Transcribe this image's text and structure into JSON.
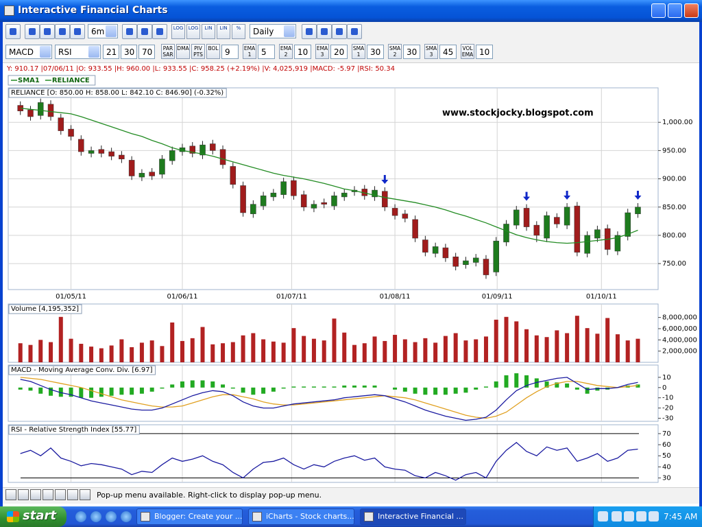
{
  "window": {
    "title": "Interactive Financial Charts"
  },
  "toolbar": {
    "period": "6m",
    "interval": "Daily",
    "scale_buttons": [
      "LOG",
      "LOG",
      "LIN",
      "LIN",
      "%"
    ],
    "indicators": [
      "MACD",
      "RSI"
    ],
    "indicator_params": [
      "21",
      "30",
      "70"
    ],
    "overlays": [
      {
        "label": [
          "PAR",
          "SAR"
        ]
      },
      {
        "label": [
          "DMA"
        ]
      },
      {
        "label": [
          "PIV",
          "PTS"
        ]
      },
      {
        "label": [
          "BOL"
        ],
        "period": "9"
      },
      {
        "label": [
          "EMA",
          "1"
        ],
        "period": "5"
      },
      {
        "label": [
          "EMA",
          "2"
        ],
        "period": "10"
      },
      {
        "label": [
          "EMA",
          "3"
        ],
        "period": "20"
      },
      {
        "label": [
          "SMA",
          "1"
        ],
        "period": "30"
      },
      {
        "label": [
          "SMA",
          "2"
        ],
        "period": "30"
      },
      {
        "label": [
          "SMA",
          "3"
        ],
        "period": "45"
      },
      {
        "label": [
          "VOL",
          "EMA"
        ],
        "period": "10"
      }
    ]
  },
  "info_line": "Y: 910.17 |07/06/11 |O: 933.55 |H: 960.00 |L: 933.55 |C: 958.25 (+2.19%) |V: 4,025,919 |MACD: -5.97 |RSI: 50.34",
  "watermark": "www.stockjocky.blogspot.com",
  "chart_data": [
    {
      "type": "candlestick",
      "title": "RELIANCE [O: 850.00 H: 858.00 L: 842.10 C: 846.90] (-0.32%)",
      "xlim": [
        -1.2,
        63
      ],
      "ylim": [
        704,
        1061
      ],
      "grid": true,
      "xticks": [
        {
          "value": 5,
          "label": "01/05/11"
        },
        {
          "value": 16,
          "label": "01/06/11"
        },
        {
          "value": 26.8,
          "label": "01/07/11"
        },
        {
          "value": 37,
          "label": "01/08/11"
        },
        {
          "value": 47.1,
          "label": "01/09/11"
        },
        {
          "value": 57.4,
          "label": "01/10/11"
        }
      ],
      "yticks": [
        {
          "value": 750,
          "label": "750.00"
        },
        {
          "value": 800,
          "label": "800.00"
        },
        {
          "value": 850,
          "label": "850.00"
        },
        {
          "value": 900,
          "label": "900.00"
        },
        {
          "value": 950,
          "label": "950.00"
        },
        {
          "value": 1000,
          "label": "1,000.00"
        }
      ],
      "signals": [
        36,
        50,
        54,
        61
      ],
      "series": [
        {
          "name": "RELIANCE",
          "style": "candlestick",
          "color": "#1e7b1e",
          "down_color": "#a01c1c",
          "open": [
            1030,
            1022,
            1012,
            1032,
            1008,
            988,
            970,
            945,
            952,
            948,
            942,
            933,
            903,
            912,
            908,
            932,
            948,
            958,
            942,
            962,
            952,
            922,
            888,
            838,
            852,
            868,
            872,
            897,
            872,
            848,
            858,
            852,
            868,
            877,
            882,
            868,
            878,
            848,
            838,
            828,
            792,
            768,
            778,
            762,
            748,
            752,
            758,
            735,
            788,
            818,
            848,
            818,
            795,
            832,
            818,
            852,
            768,
            795,
            812,
            772,
            798,
            838
          ],
          "high": [
            1037,
            1029,
            1042,
            1039,
            1015,
            995,
            977,
            957,
            959,
            955,
            949,
            940,
            917,
            919,
            942,
            957,
            962,
            965,
            967,
            969,
            959,
            929,
            895,
            862,
            877,
            882,
            902,
            904,
            879,
            862,
            865,
            877,
            882,
            887,
            889,
            887,
            885,
            855,
            845,
            835,
            799,
            787,
            785,
            769,
            762,
            767,
            765,
            797,
            827,
            852,
            855,
            825,
            842,
            839,
            857,
            859,
            807,
            817,
            819,
            807,
            847,
            857
          ],
          "low": [
            1013,
            1003,
            1005,
            1003,
            978,
            968,
            941,
            938,
            938,
            933,
            928,
            898,
            896,
            898,
            901,
            925,
            941,
            938,
            935,
            943,
            918,
            883,
            833,
            831,
            845,
            861,
            865,
            863,
            843,
            841,
            848,
            845,
            861,
            870,
            863,
            861,
            843,
            828,
            823,
            788,
            763,
            761,
            753,
            738,
            741,
            745,
            723,
            728,
            781,
            811,
            808,
            788,
            788,
            813,
            811,
            763,
            761,
            788,
            765,
            765,
            791,
            831
          ],
          "close": [
            1020,
            1010,
            1035,
            1010,
            985,
            975,
            948,
            950,
            945,
            940,
            935,
            905,
            910,
            905,
            935,
            950,
            955,
            945,
            960,
            950,
            925,
            890,
            840,
            855,
            870,
            875,
            895,
            870,
            850,
            855,
            855,
            870,
            875,
            880,
            870,
            880,
            850,
            835,
            830,
            795,
            770,
            780,
            760,
            745,
            755,
            760,
            730,
            790,
            820,
            845,
            815,
            800,
            835,
            820,
            850,
            770,
            800,
            810,
            775,
            800,
            840,
            850
          ]
        },
        {
          "name": "SMA1",
          "style": "line",
          "color": "#228b22",
          "values": [
            1025,
            1023,
            1021,
            1019,
            1017,
            1015,
            1010,
            1004,
            998,
            992,
            986,
            980,
            975,
            968,
            962,
            955,
            950,
            947,
            944,
            940,
            935,
            930,
            925,
            920,
            915,
            910,
            906,
            903,
            900,
            896,
            892,
            887,
            882,
            879,
            875,
            871,
            867,
            864,
            861,
            858,
            854,
            850,
            845,
            839,
            834,
            828,
            822,
            815,
            808,
            801,
            796,
            792,
            789,
            787,
            786,
            787,
            789,
            791,
            793,
            796,
            802,
            809
          ]
        }
      ]
    },
    {
      "type": "bar",
      "title": "Volume [4,195,352]",
      "xlim": [
        -1.2,
        63
      ],
      "ylim": [
        0,
        10400000
      ],
      "yticks": [
        {
          "value": 2000000,
          "label": "2,000,000"
        },
        {
          "value": 4000000,
          "label": "4,000,000"
        },
        {
          "value": 6000000,
          "label": "6,000,000"
        },
        {
          "value": 8000000,
          "label": "8,000,000"
        }
      ],
      "series": [
        {
          "style": "bar",
          "color": "#b22222",
          "values": [
            3400000,
            3100000,
            4000000,
            3600000,
            8100000,
            4200000,
            3300000,
            2800000,
            2500000,
            3000000,
            4100000,
            2700000,
            3500000,
            3900000,
            2900000,
            7100000,
            3800000,
            4300000,
            6300000,
            3200000,
            3400000,
            3600000,
            4800000,
            5200000,
            4100000,
            3700000,
            3500000,
            6100000,
            4700000,
            4200000,
            3900000,
            7800000,
            5300000,
            3100000,
            3400000,
            4600000,
            3800000,
            4900000,
            4100000,
            3600000,
            4300000,
            3500000,
            4700000,
            5200000,
            3900000,
            4100000,
            4600000,
            7600000,
            8100000,
            7300000,
            5900000,
            4800000,
            4500000,
            5700000,
            5200000,
            8300000,
            6100000,
            5100000,
            7900000,
            5000000,
            3900000,
            4200000
          ]
        }
      ]
    },
    {
      "type": "line",
      "title": "MACD - Moving Average Conv. Div. [6.97]",
      "xlim": [
        -1.2,
        63
      ],
      "ylim": [
        -33,
        22
      ],
      "yticks": [
        -30,
        -20,
        -10,
        0,
        10
      ],
      "series": [
        {
          "style": "bar",
          "color": "#22aa22",
          "values": [
            -2,
            -3,
            -6,
            -8,
            -9,
            -9,
            -10,
            -10,
            -9,
            -8,
            -7,
            -7,
            -6,
            -4,
            -1,
            3,
            6,
            7,
            7,
            6,
            3,
            -1,
            -5,
            -7,
            -6,
            -4,
            -1,
            1,
            1,
            1,
            1,
            1,
            2,
            2,
            2,
            2,
            0,
            -2,
            -4,
            -6,
            -7,
            -7,
            -7,
            -6,
            -5,
            -2,
            1,
            6,
            12,
            14,
            12,
            9,
            6,
            5,
            4,
            -2,
            -6,
            -3,
            -2,
            0,
            2,
            3
          ]
        },
        {
          "style": "line",
          "color": "#e0a020",
          "values": [
            10,
            9,
            8,
            6,
            4,
            2,
            0,
            -3,
            -6,
            -9,
            -12,
            -14,
            -16,
            -18,
            -19,
            -19,
            -18,
            -15,
            -12,
            -9,
            -7,
            -7,
            -9,
            -11,
            -14,
            -16,
            -17,
            -17,
            -16,
            -15,
            -14,
            -13,
            -12,
            -11,
            -10,
            -9,
            -8,
            -9,
            -10,
            -12,
            -15,
            -18,
            -21,
            -24,
            -27,
            -29,
            -30,
            -28,
            -24,
            -17,
            -10,
            -4,
            1,
            4,
            6,
            6,
            4,
            2,
            1,
            0,
            1,
            2
          ]
        },
        {
          "style": "line",
          "color": "#1a1aa0",
          "values": [
            8,
            6,
            2,
            -2,
            -5,
            -7,
            -10,
            -13,
            -15,
            -17,
            -19,
            -21,
            -22,
            -22,
            -20,
            -16,
            -12,
            -8,
            -5,
            -3,
            -4,
            -8,
            -14,
            -18,
            -20,
            -20,
            -18,
            -16,
            -15,
            -14,
            -13,
            -12,
            -10,
            -9,
            -8,
            -7,
            -8,
            -11,
            -14,
            -18,
            -22,
            -25,
            -28,
            -30,
            -32,
            -31,
            -29,
            -22,
            -12,
            -3,
            2,
            5,
            7,
            9,
            10,
            4,
            -2,
            -1,
            -1,
            0,
            3,
            5
          ]
        }
      ]
    },
    {
      "type": "line",
      "title": "RSI - Relative Strength Index [55.77]",
      "xlim": [
        -1.2,
        63
      ],
      "ylim": [
        26,
        78
      ],
      "yticks": [
        30,
        40,
        50,
        60,
        70
      ],
      "hlines": [
        70,
        30
      ],
      "series": [
        {
          "style": "line",
          "color": "#1a1aa0",
          "values": [
            52,
            55,
            50,
            57,
            48,
            45,
            41,
            43,
            42,
            40,
            38,
            33,
            36,
            35,
            42,
            48,
            45,
            47,
            50,
            45,
            42,
            35,
            30,
            38,
            44,
            45,
            48,
            42,
            38,
            42,
            40,
            45,
            48,
            50,
            46,
            48,
            40,
            38,
            37,
            32,
            30,
            35,
            32,
            28,
            33,
            35,
            30,
            45,
            55,
            62,
            54,
            50,
            58,
            55,
            57,
            45,
            48,
            52,
            45,
            48,
            55,
            56
          ]
        }
      ]
    }
  ],
  "status": "Pop-up menu available. Right-click to display pop-up menu.",
  "taskbar": {
    "start": "start",
    "tasks": [
      "Blogger: Create your ...",
      "iCharts - Stock charts...",
      "Interactive Financial ..."
    ],
    "clock": "7:45 AM"
  }
}
